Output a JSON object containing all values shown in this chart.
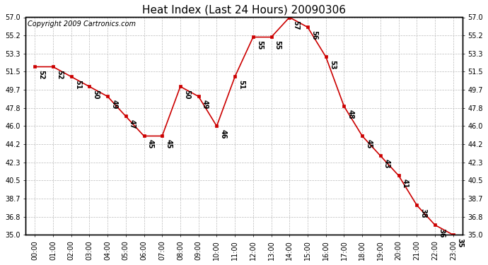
{
  "title": "Heat Index (Last 24 Hours) 20090306",
  "copyright": "Copyright 2009 Cartronics.com",
  "hours": [
    "00:00",
    "01:00",
    "02:00",
    "03:00",
    "04:00",
    "05:00",
    "06:00",
    "07:00",
    "08:00",
    "09:00",
    "10:00",
    "11:00",
    "12:00",
    "13:00",
    "14:00",
    "15:00",
    "16:00",
    "17:00",
    "18:00",
    "19:00",
    "20:00",
    "21:00",
    "22:00",
    "23:00"
  ],
  "values": [
    52,
    52,
    51,
    50,
    49,
    47,
    45,
    45,
    50,
    49,
    46,
    51,
    55,
    55,
    57,
    56,
    53,
    48,
    45,
    43,
    41,
    38,
    36,
    35
  ],
  "ylim": [
    35.0,
    57.0
  ],
  "yticks": [
    35.0,
    36.8,
    38.7,
    40.5,
    42.3,
    44.2,
    46.0,
    47.8,
    49.7,
    51.5,
    53.3,
    55.2,
    57.0
  ],
  "line_color": "#cc0000",
  "marker_color": "#cc0000",
  "bg_color": "#ffffff",
  "grid_color": "#bbbbbb",
  "title_fontsize": 11,
  "copyright_fontsize": 7,
  "label_fontsize": 7,
  "tick_fontsize": 7
}
